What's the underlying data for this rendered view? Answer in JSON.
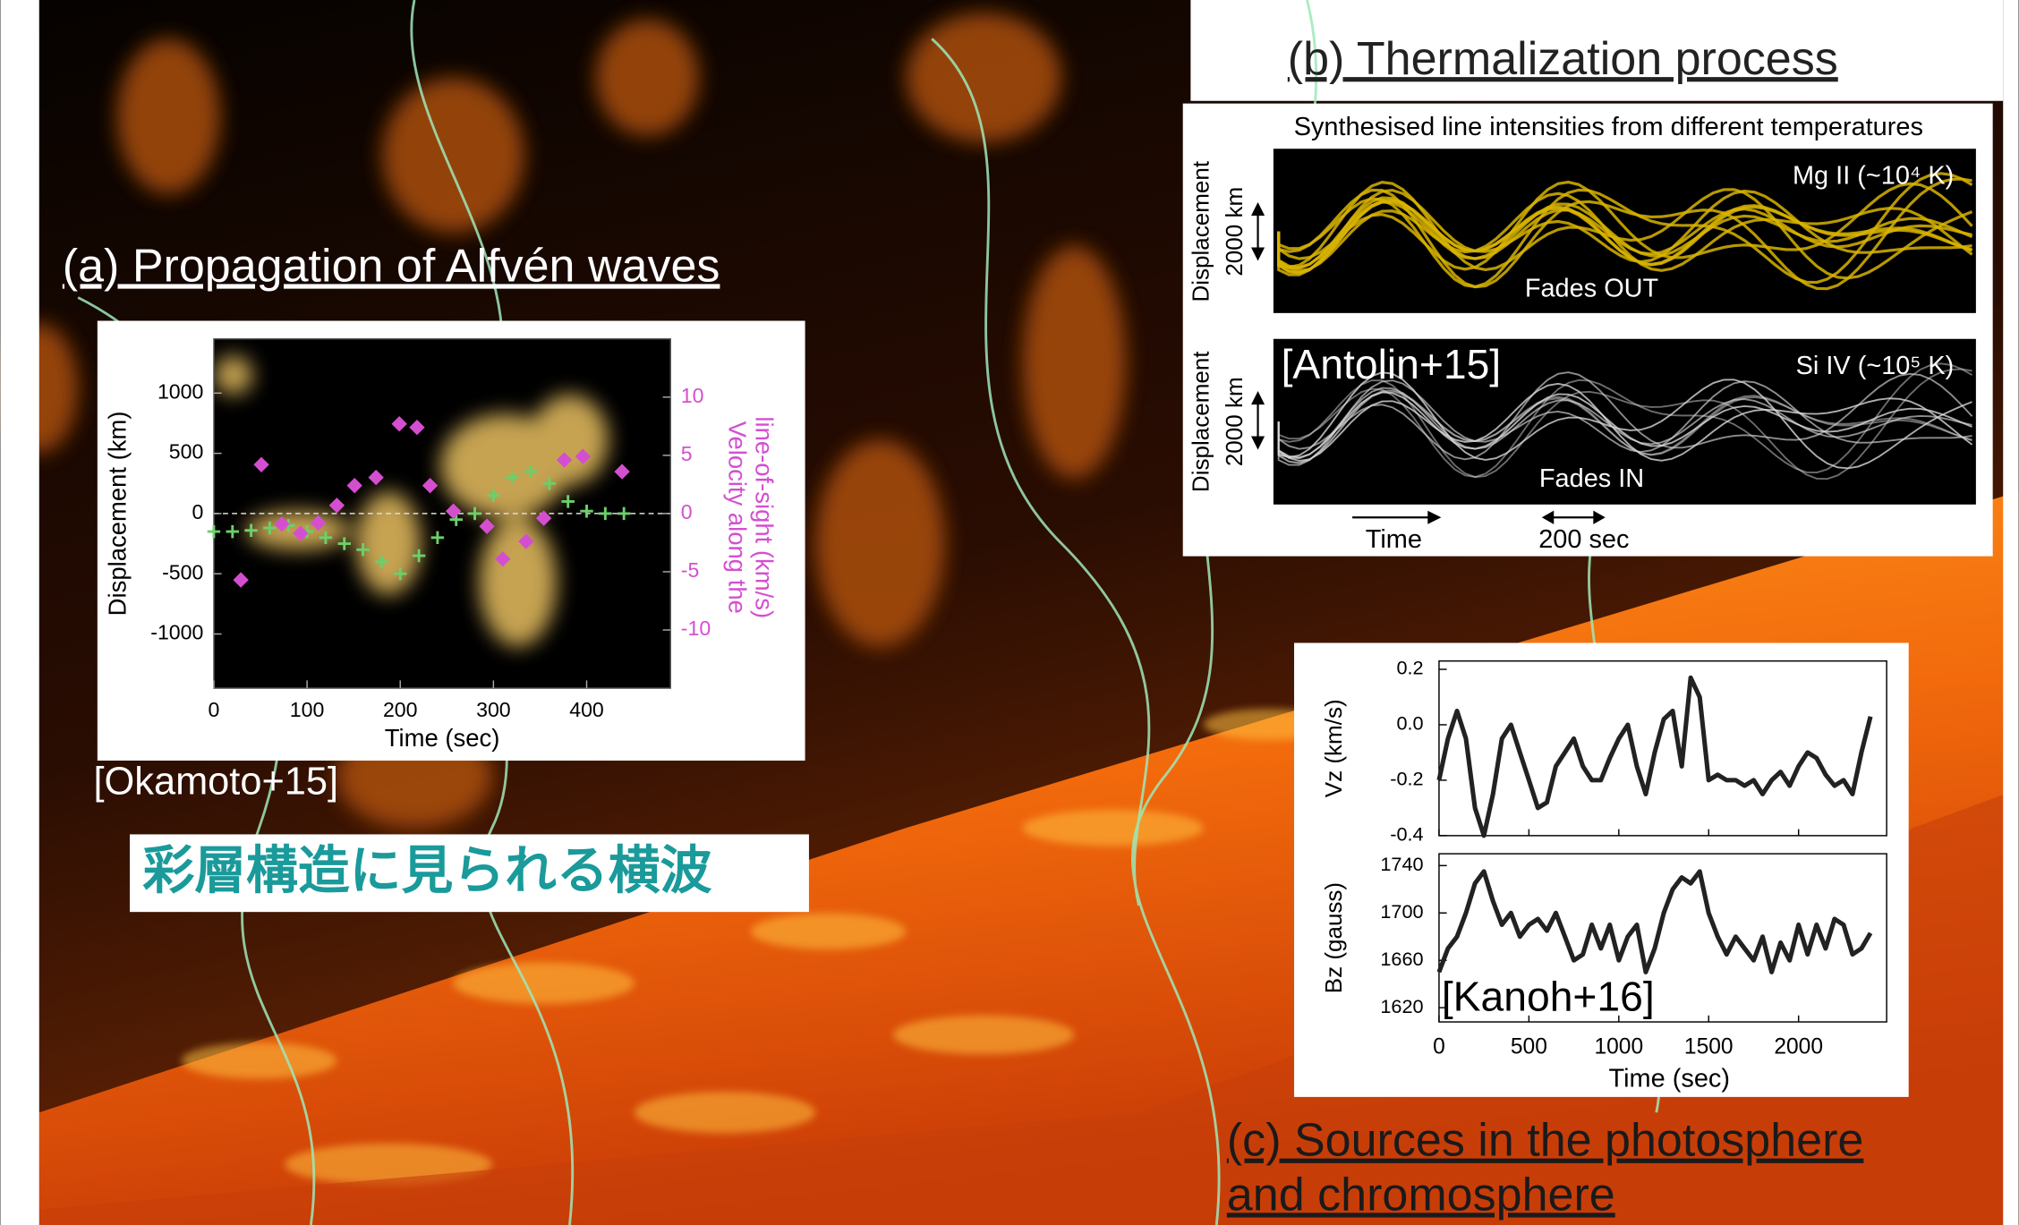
{
  "chart_data": [
    {
      "type": "scatter",
      "title": "(a) Propagation of Alfvén waves",
      "xlabel": "Time (sec)",
      "ylabel": "Displacement (km)",
      "y2label": [
        "Velocity along the",
        "line-of-sight (km/s)"
      ],
      "xlim": [
        0,
        490
      ],
      "xticks": [
        0,
        100,
        200,
        300,
        400
      ],
      "ylim": [
        -1450,
        1450
      ],
      "yticks": [
        -1000,
        -500,
        0,
        500,
        1000
      ],
      "y2lim": [
        -15,
        15
      ],
      "y2ticks": [
        -10,
        -5,
        0,
        5,
        10
      ],
      "series": [
        {
          "color": "#6ccf6c",
          "x": [
            0,
            20,
            40,
            60,
            80,
            100,
            120,
            140,
            160,
            180,
            200,
            220,
            240,
            260,
            280,
            300,
            320,
            340,
            360,
            380,
            400,
            420,
            440
          ],
          "values": [
            -150,
            -150,
            -140,
            -120,
            -100,
            -150,
            -200,
            -250,
            -300,
            -400,
            -500,
            -350,
            -200,
            -50,
            0,
            150,
            300,
            350,
            250,
            100,
            20,
            0,
            0
          ]
        },
        {
          "color": "#d44fd0",
          "axis": "y2",
          "x": [
            29,
            51,
            73,
            93,
            112,
            132,
            151,
            174,
            199,
            218,
            232,
            257,
            293,
            310,
            335,
            354,
            376,
            396,
            438
          ],
          "values": [
            -5.7,
            4.2,
            -0.9,
            -1.7,
            -0.8,
            0.7,
            2.4,
            3.1,
            7.7,
            7.4,
            2.4,
            0.2,
            -1.1,
            -3.9,
            -2.4,
            -0.4,
            4.6,
            4.9,
            3.6
          ]
        }
      ],
      "citation": "[Okamoto+15]",
      "annotation": "彩層構造に見られる横波"
    },
    {
      "type": "image",
      "title": "(b) Thermalization process",
      "subtitle": "Synthesised line intensities from different temperatures",
      "panels": [
        {
          "label": "Mg II  (~10⁴ K)",
          "note": "Fades OUT",
          "color": "#d8b400"
        },
        {
          "label": "Si IV (~10⁵ K)",
          "note": "Fades IN",
          "color": "#d8d8d8"
        }
      ],
      "ylabel": "Displacement",
      "scale_label": "2000 km",
      "xlabel": "Time",
      "time_scale": "200 sec",
      "citation": "[Antolin+15]"
    },
    {
      "type": "line",
      "title": [
        "(c) Sources in the photosphere",
        "and chromosphere"
      ],
      "xlabel": "Time (sec)",
      "xlim": [
        0,
        2490
      ],
      "xticks": [
        0,
        500,
        1000,
        1500,
        2000
      ],
      "x": [
        0,
        50,
        100,
        150,
        200,
        250,
        300,
        350,
        400,
        450,
        500,
        550,
        600,
        650,
        700,
        750,
        800,
        850,
        900,
        950,
        1000,
        1050,
        1100,
        1150,
        1200,
        1250,
        1300,
        1350,
        1400,
        1450,
        1500,
        1550,
        1600,
        1650,
        1700,
        1750,
        1800,
        1850,
        1900,
        1950,
        2000,
        2050,
        2100,
        2150,
        2200,
        2250,
        2300,
        2350,
        2400
      ],
      "series": [
        {
          "ylabel": "Vz (km/s)",
          "color": "#222222",
          "ylim": [
            -0.4,
            0.23
          ],
          "yticks": [
            -0.4,
            -0.2,
            {
              "value": 0,
              "label": "0.0"
            },
            0.2
          ],
          "values": [
            -0.2,
            -0.05,
            0.05,
            -0.05,
            -0.3,
            -0.4,
            -0.25,
            -0.05,
            0.0,
            -0.1,
            -0.2,
            -0.3,
            -0.28,
            -0.15,
            -0.1,
            -0.05,
            -0.15,
            -0.2,
            -0.2,
            -0.12,
            -0.05,
            0.0,
            -0.15,
            -0.25,
            -0.1,
            0.02,
            0.05,
            -0.15,
            0.17,
            0.1,
            -0.2,
            -0.18,
            -0.2,
            -0.2,
            -0.22,
            -0.2,
            -0.25,
            -0.2,
            -0.17,
            -0.22,
            -0.15,
            -0.1,
            -0.12,
            -0.18,
            -0.22,
            -0.2,
            -0.25,
            -0.1,
            0.03
          ]
        },
        {
          "ylabel": "Bz (gauss)",
          "color": "#222222",
          "ylim": [
            1608,
            1750
          ],
          "yticks": [
            1620,
            1660,
            1700,
            1740
          ],
          "values": [
            1650,
            1670,
            1680,
            1700,
            1725,
            1735,
            1710,
            1690,
            1700,
            1680,
            1690,
            1695,
            1685,
            1700,
            1680,
            1660,
            1665,
            1690,
            1670,
            1690,
            1660,
            1680,
            1690,
            1650,
            1670,
            1700,
            1720,
            1730,
            1725,
            1735,
            1700,
            1680,
            1665,
            1680,
            1670,
            1660,
            1680,
            1650,
            1675,
            1660,
            1690,
            1665,
            1690,
            1670,
            1695,
            1690,
            1665,
            1670,
            1683
          ]
        }
      ],
      "citation": "[Kanoh+16]"
    }
  ]
}
